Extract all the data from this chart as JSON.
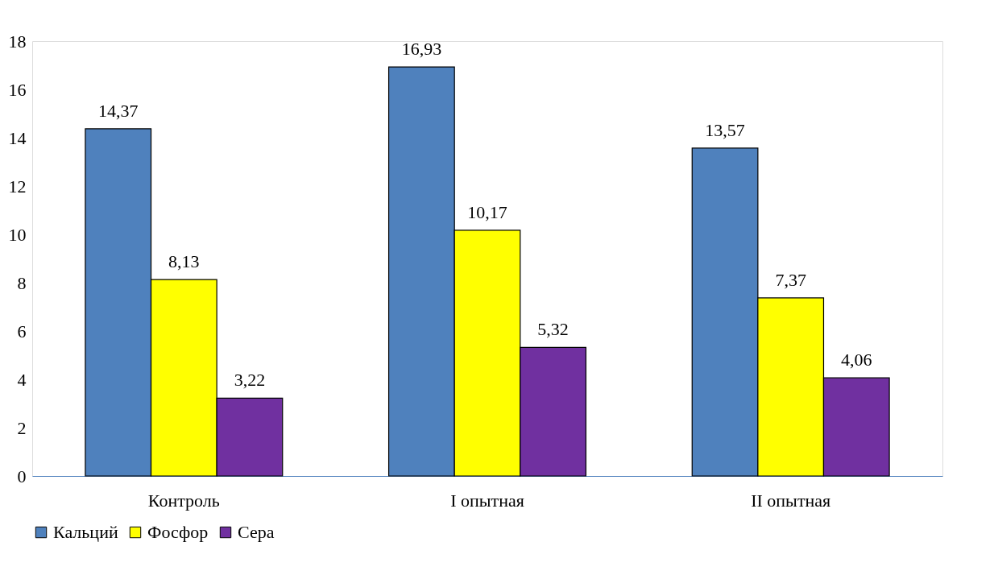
{
  "chart_data": {
    "type": "bar",
    "categories": [
      "Контроль",
      "I опытная",
      "II опытная"
    ],
    "series": [
      {
        "name": "Кальций",
        "color": "#4f81bd",
        "values": [
          14.37,
          16.93,
          13.57
        ],
        "value_labels": [
          "14,37",
          "16,93",
          "13,57"
        ]
      },
      {
        "name": "Фосфор",
        "color": "#ffff00",
        "values": [
          8.13,
          10.17,
          7.37
        ],
        "value_labels": [
          "8,13",
          "10,17",
          "7,37"
        ]
      },
      {
        "name": "Сера",
        "color": "#7030a0",
        "values": [
          3.22,
          5.32,
          4.06
        ],
        "value_labels": [
          "3,22",
          "5,32",
          "4,06"
        ]
      }
    ],
    "ylim": [
      0,
      18
    ],
    "yticks": [
      0,
      2,
      4,
      6,
      8,
      10,
      12,
      14,
      16,
      18
    ],
    "grid": false,
    "legend": "bottom"
  }
}
